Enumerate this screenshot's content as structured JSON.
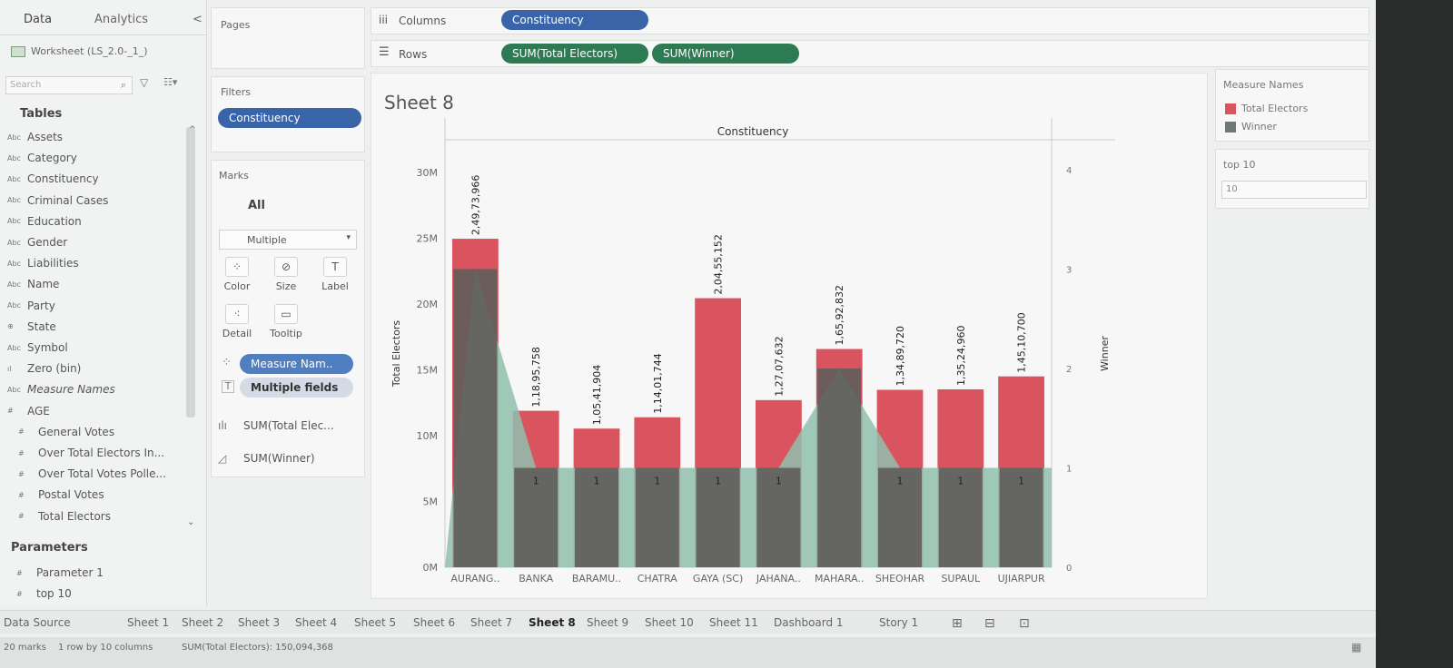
{
  "datapane": {
    "tab_data": "Data",
    "tab_analytics": "Analytics",
    "collapse_glyph": "<",
    "datasource": "Worksheet (LS_2.0-_1_)",
    "search_placeholder": "Search",
    "tables_heading": "Tables",
    "fields": [
      {
        "type": "Abc",
        "name": "Assets"
      },
      {
        "type": "Abc",
        "name": "Category"
      },
      {
        "type": "Abc",
        "name": "Constituency"
      },
      {
        "type": "Abc",
        "name": "Criminal Cases"
      },
      {
        "type": "Abc",
        "name": "Education"
      },
      {
        "type": "Abc",
        "name": "Gender"
      },
      {
        "type": "Abc",
        "name": "Liabilities"
      },
      {
        "type": "Abc",
        "name": "Name"
      },
      {
        "type": "Abc",
        "name": "Party"
      },
      {
        "type": "globe",
        "name": "State"
      },
      {
        "type": "Abc",
        "name": "Symbol"
      },
      {
        "type": "bin",
        "name": "Zero (bin)"
      },
      {
        "type": "Abc",
        "name": "Measure Names"
      },
      {
        "type": "#",
        "name": "AGE"
      },
      {
        "type": "#",
        "name": "General Votes"
      },
      {
        "type": "#",
        "name": "Over Total Electors In..."
      },
      {
        "type": "#",
        "name": "Over Total Votes Polle..."
      },
      {
        "type": "#",
        "name": "Postal Votes"
      },
      {
        "type": "#",
        "name": "Total Electors"
      }
    ],
    "parameters_heading": "Parameters",
    "parameters": [
      {
        "type": "#",
        "name": "Parameter 1"
      },
      {
        "type": "#",
        "name": "top 10"
      }
    ]
  },
  "pages": {
    "label": "Pages"
  },
  "filters": {
    "label": "Filters",
    "pill": "Constituency"
  },
  "marks": {
    "label": "Marks",
    "all": "All",
    "type_select": "Multiple",
    "buttons": {
      "color": "Color",
      "size": "Size",
      "label": "Label",
      "detail": "Detail",
      "tooltip": "Tooltip"
    },
    "pill_measure": "Measure Nam..",
    "pill_fields": "Multiple fields",
    "card_1": "SUM(Total Elec...",
    "card_2": "SUM(Winner)"
  },
  "columns_shelf": {
    "label": "Columns",
    "pill": "Constituency"
  },
  "rows_shelf": {
    "label": "Rows",
    "pills": [
      "SUM(Total Electors)",
      "SUM(Winner)"
    ]
  },
  "sheet_title": "Sheet 8",
  "legend": {
    "title": "Measure Names",
    "items": [
      {
        "name": "Total Electors",
        "color": "#d9545f"
      },
      {
        "name": "Winner",
        "color": "#6e7875"
      }
    ]
  },
  "parameter_card": {
    "title": "top 10",
    "value": "10"
  },
  "chart_data": {
    "type": "bar",
    "title": "Constituency",
    "xlabel": "",
    "ylabel": "Total Electors",
    "y2label": "Winner",
    "categories": [
      "AURANG..",
      "BANKA",
      "BARAMU..",
      "CHATRA",
      "GAYA (SC)",
      "JAHANA..",
      "MAHARA..",
      "SHEOHAR",
      "SUPAUL",
      "UJIARPUR"
    ],
    "series": [
      {
        "name": "Total Electors",
        "axis": "left",
        "values": [
          24973966,
          11895758,
          10541904,
          11401744,
          20455152,
          12707632,
          16592832,
          13489720,
          13524960,
          14510700
        ],
        "labels": [
          "2,49,73,966",
          "1,18,95,758",
          "1,05,41,904",
          "1,14,01,744",
          "2,04,55,152",
          "1,27,07,632",
          "1,65,92,832",
          "1,34,89,720",
          "1,35,24,960",
          "1,45,10,700"
        ]
      },
      {
        "name": "Winner",
        "axis": "right",
        "values": [
          3,
          1,
          1,
          1,
          1,
          1,
          2,
          1,
          1,
          1
        ],
        "labels": [
          "",
          "1",
          "1",
          "1",
          "1",
          "1",
          "",
          "1",
          "1",
          "1"
        ]
      }
    ],
    "yticks": [
      "0M",
      "5M",
      "10M",
      "15M",
      "20M",
      "25M",
      "30M"
    ],
    "ylim": [
      0,
      32500000
    ],
    "y2ticks": [
      "0",
      "1",
      "2",
      "3",
      "4"
    ],
    "y2lim": [
      0,
      4.3
    ],
    "colors": {
      "electors": "#d9545f",
      "winner_area": "#8fbfae",
      "winner_bar": "#5f5e5b"
    }
  },
  "sheet_tabs": [
    "Data Source",
    "Sheet 1",
    "Sheet 2",
    "Sheet 3",
    "Sheet 4",
    "Sheet 5",
    "Sheet 6",
    "Sheet 7",
    "Sheet 8",
    "Sheet 9",
    "Sheet 10",
    "Sheet 11",
    "Dashboard 1",
    "Story 1"
  ],
  "active_tab": "Sheet 8",
  "statusbar": {
    "marks": "20 marks",
    "dims": "1 row by 10 columns",
    "sum": "SUM(Total Electors): 150,094,368"
  }
}
